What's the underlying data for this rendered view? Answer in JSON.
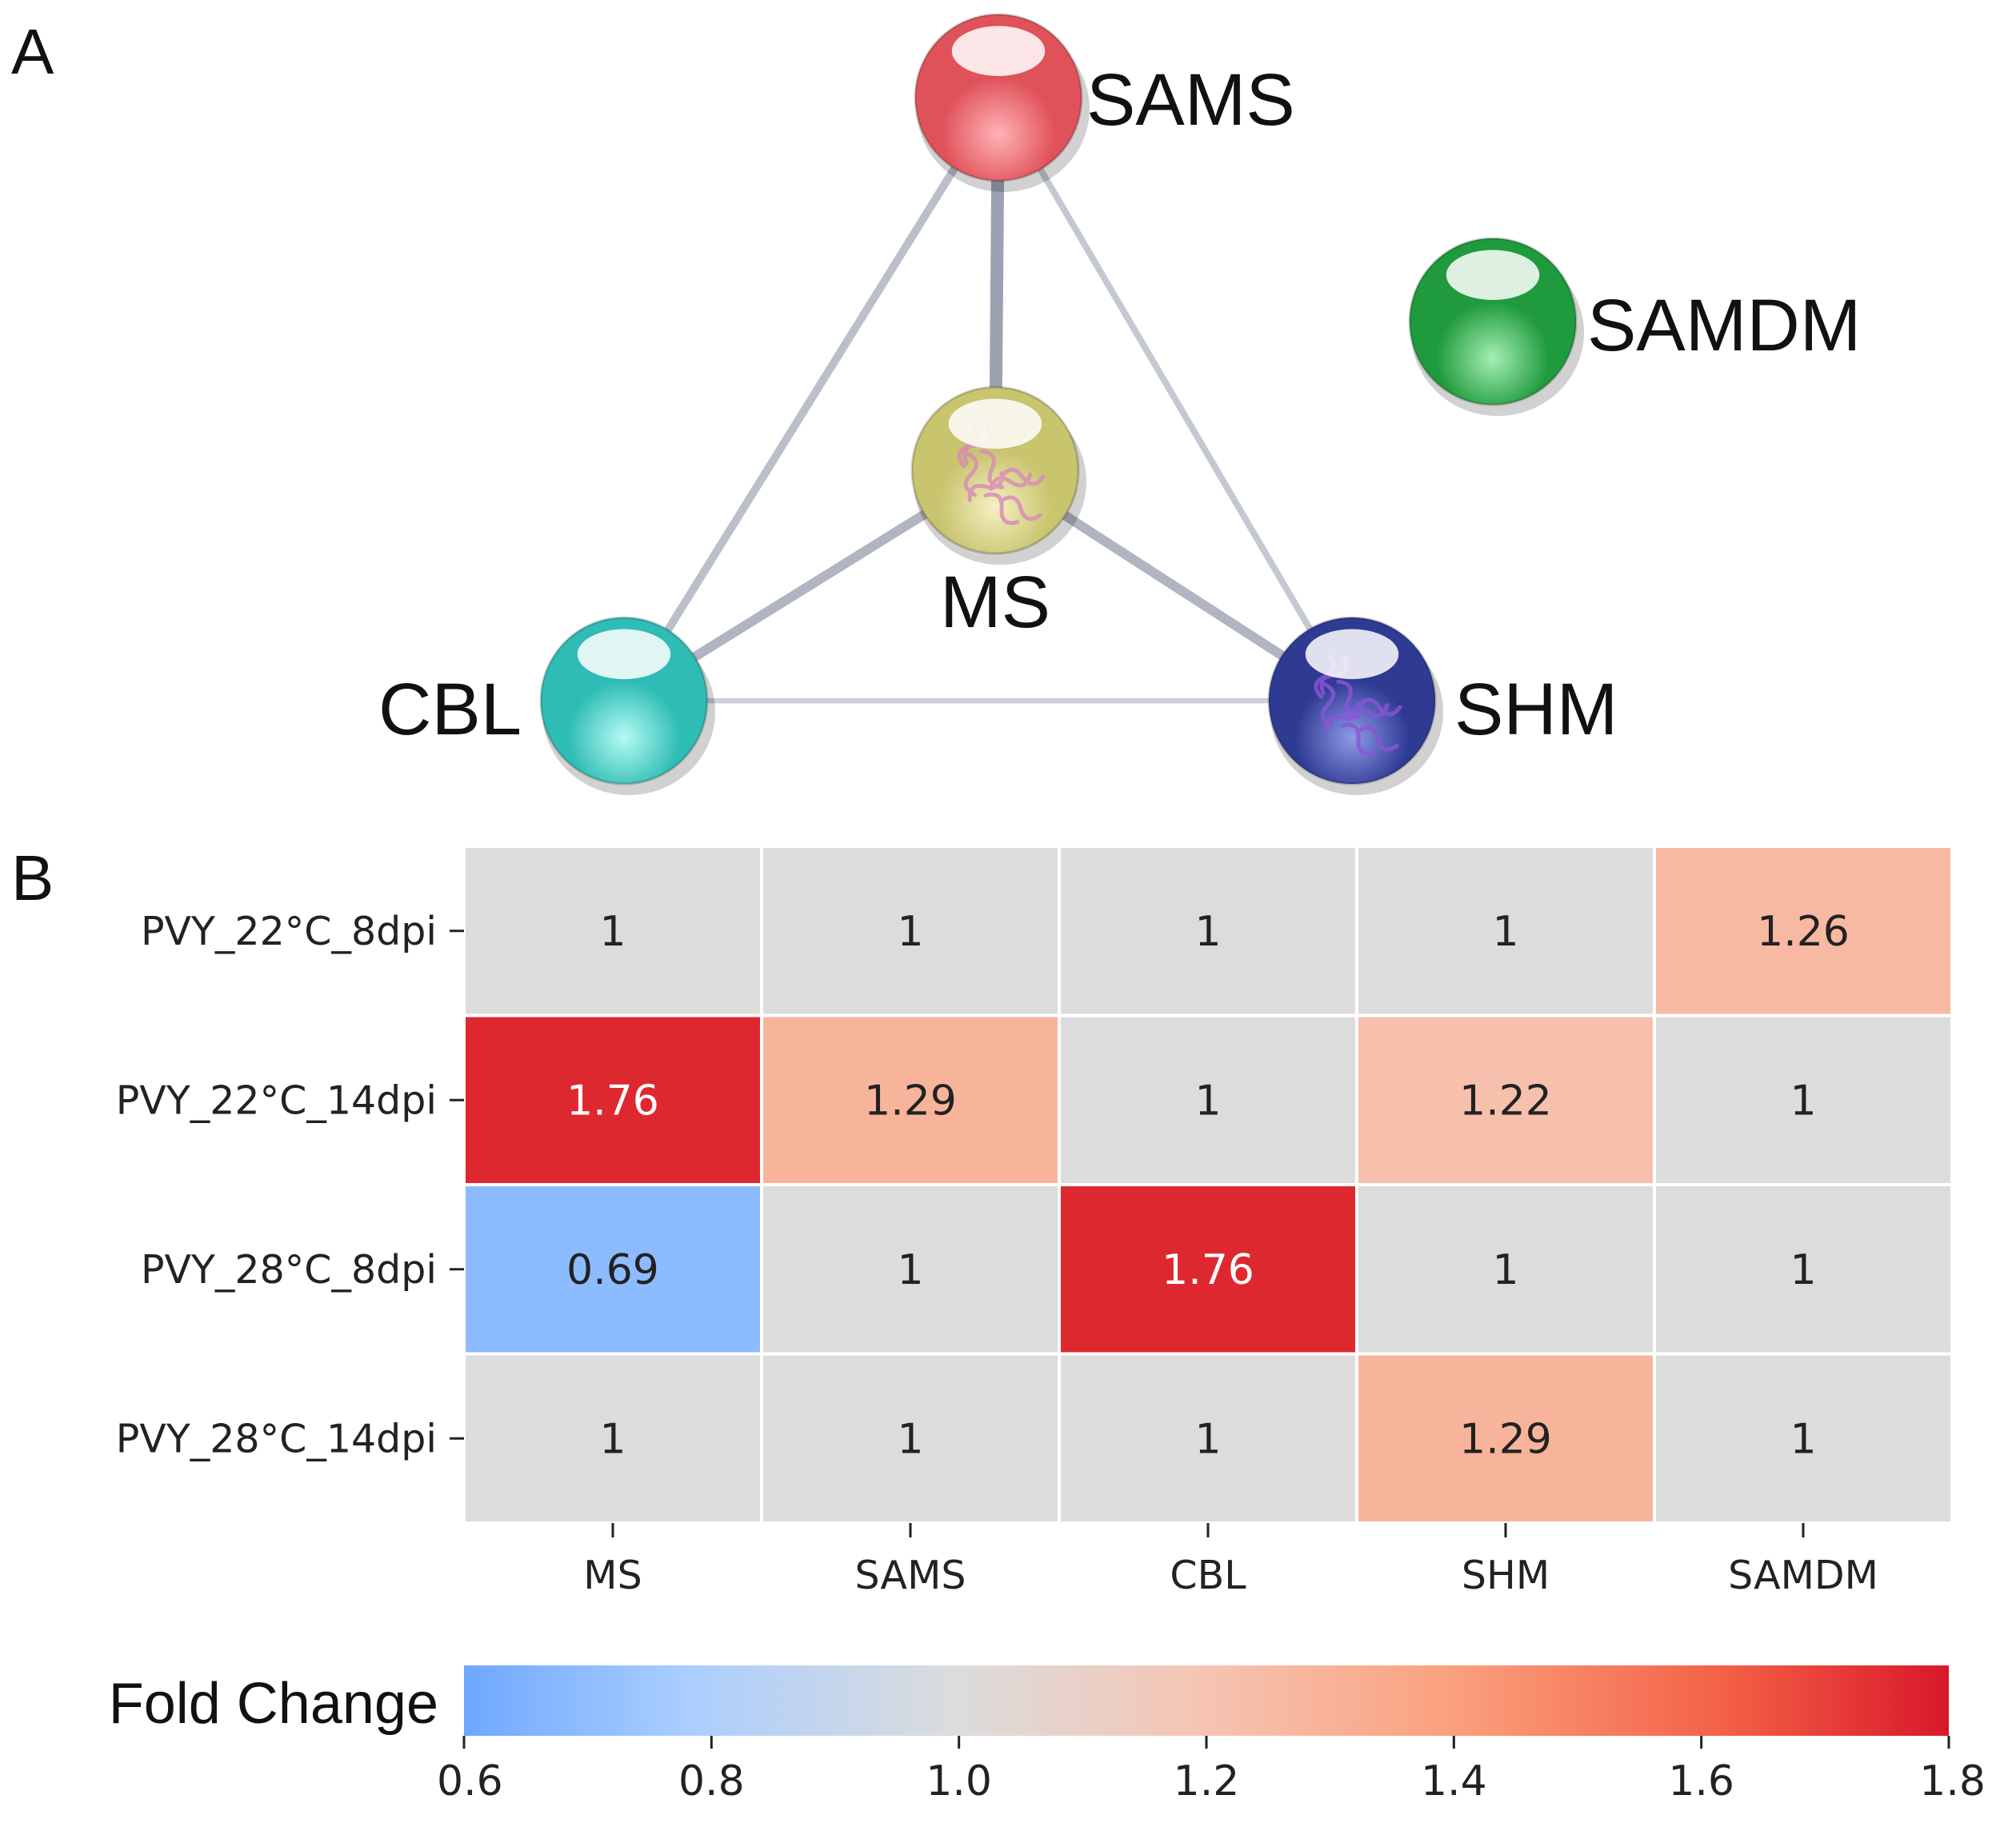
{
  "panels": {
    "a_label": "A",
    "b_label": "B"
  },
  "network": {
    "nodes": [
      {
        "id": "SAMS",
        "label": "SAMS",
        "color": "#e0525a",
        "light": "#ffb3b6",
        "protein": false
      },
      {
        "id": "MS",
        "label": "MS",
        "color": "#c9c46e",
        "light": "#f4f1c2",
        "protein": true,
        "protein_color": "#d98ab8"
      },
      {
        "id": "CBL",
        "label": "CBL",
        "color": "#2ebcb4",
        "light": "#b4fbf4",
        "protein": false
      },
      {
        "id": "SHM",
        "label": "SHM",
        "color": "#2f3a93",
        "light": "#8e9ae6",
        "protein": true,
        "protein_color": "#8a55d8"
      },
      {
        "id": "SAMDM",
        "label": "SAMDM",
        "color": "#1f9a3c",
        "light": "#a4efb4",
        "protein": false
      }
    ],
    "edges": [
      {
        "from": "SAMS",
        "to": "MS",
        "weight": 3
      },
      {
        "from": "SAMS",
        "to": "CBL",
        "weight": 1.5
      },
      {
        "from": "SAMS",
        "to": "SHM",
        "weight": 1
      },
      {
        "from": "MS",
        "to": "CBL",
        "weight": 2
      },
      {
        "from": "MS",
        "to": "SHM",
        "weight": 2
      },
      {
        "from": "CBL",
        "to": "SHM",
        "weight": 0.6
      }
    ],
    "edge_color": "#8f97a8"
  },
  "chart_data": {
    "type": "heatmap",
    "rows": [
      "PVY_22°C_8dpi",
      "PVY_22°C_14dpi",
      "PVY_28°C_8dpi",
      "PVY_28°C_14dpi"
    ],
    "columns": [
      "MS",
      "SAMS",
      "CBL",
      "SHM",
      "SAMDM"
    ],
    "values": [
      [
        1,
        1,
        1,
        1,
        1.26
      ],
      [
        1.76,
        1.29,
        1,
        1.22,
        1
      ],
      [
        0.69,
        1,
        1.76,
        1,
        1
      ],
      [
        1,
        1,
        1,
        1.29,
        1
      ]
    ],
    "annotations": [
      [
        "1",
        "1",
        "1",
        "1",
        "1.26"
      ],
      [
        "1.76",
        "1.29",
        "1",
        "1.22",
        "1"
      ],
      [
        "0.69",
        "1",
        "1.76",
        "1",
        "1"
      ],
      [
        "1",
        "1",
        "1",
        "1.29",
        "1"
      ]
    ],
    "colorbar": {
      "title": "Fold Change",
      "range": [
        0.6,
        1.8
      ],
      "ticks": [
        "0.6",
        "0.8",
        "1.0",
        "1.2",
        "1.4",
        "1.6",
        "1.8"
      ],
      "colormap": "coolwarm"
    }
  }
}
